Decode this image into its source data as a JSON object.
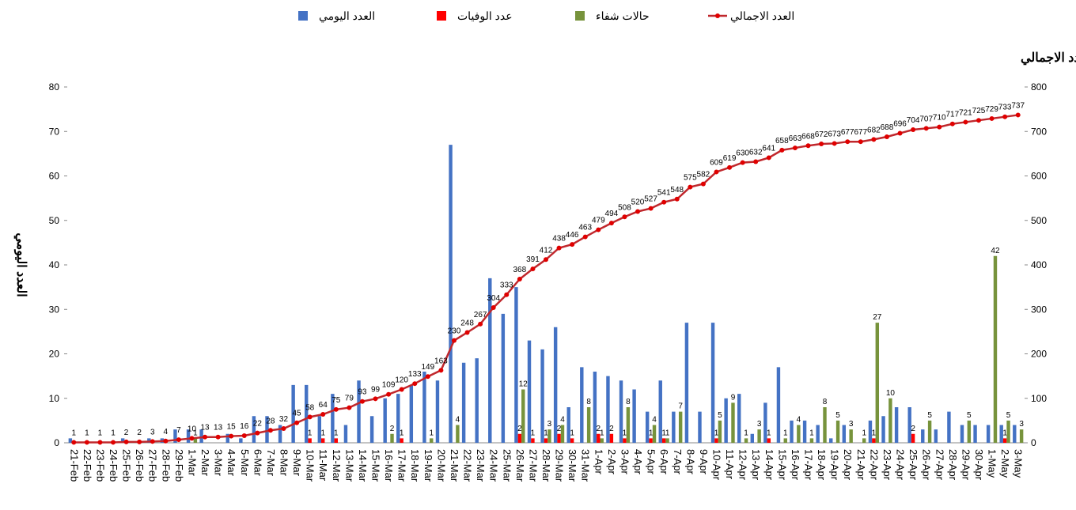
{
  "chart_data": {
    "type": "bar",
    "y_label": "العدد اليومي",
    "y2_label": "العدد الاجمالي",
    "categories": [
      "21-Feb",
      "22-Feb",
      "23-Feb",
      "24-Feb",
      "25-Feb",
      "26-Feb",
      "27-Feb",
      "28-Feb",
      "29-Feb",
      "1-Mar",
      "2-Mar",
      "3-Mar",
      "4-Mar",
      "5-Mar",
      "6-Mar",
      "7-Mar",
      "8-Mar",
      "9-Mar",
      "10-Mar",
      "11-Mar",
      "12-Mar",
      "13-Mar",
      "14-Mar",
      "15-Mar",
      "16-Mar",
      "17-Mar",
      "18-Mar",
      "19-Mar",
      "20-Mar",
      "21-Mar",
      "22-Mar",
      "23-Mar",
      "24-Mar",
      "25-Mar",
      "26-Mar",
      "27-Mar",
      "28-Mar",
      "29-Mar",
      "30-Mar",
      "31-Mar",
      "1-Apr",
      "2-Apr",
      "3-Apr",
      "4-Apr",
      "5-Apr",
      "6-Apr",
      "7-Apr",
      "8-Apr",
      "9-Apr",
      "10-Apr",
      "11-Apr",
      "12-Apr",
      "13-Apr",
      "14-Apr",
      "15-Apr",
      "16-Apr",
      "17-Apr",
      "18-Apr",
      "19-Apr",
      "20-Apr",
      "21-Apr",
      "22-Apr",
      "23-Apr",
      "24-Apr",
      "25-Apr",
      "26-Apr",
      "27-Apr",
      "28-Apr",
      "29-Apr",
      "30-Apr",
      "1-May",
      "2-May",
      "3-May"
    ],
    "series": [
      {
        "name": "العدد اليومي",
        "color": "#4472c4",
        "type": "bar",
        "values": [
          1,
          0,
          0,
          0,
          1,
          0,
          1,
          1,
          3,
          3,
          3,
          0,
          2,
          1,
          6,
          6,
          4,
          13,
          13,
          6,
          11,
          4,
          14,
          6,
          10,
          11,
          13,
          16,
          14,
          67,
          18,
          19,
          37,
          29,
          35,
          23,
          21,
          26,
          8,
          17,
          16,
          15,
          14,
          12,
          7,
          14,
          7,
          27,
          7,
          27,
          10,
          11,
          2,
          9,
          17,
          5,
          5,
          4,
          1,
          4,
          0,
          5,
          6,
          8,
          8,
          3,
          3,
          7,
          4,
          4,
          4,
          4,
          4
        ]
      },
      {
        "name": "عدد الوفيات",
        "color": "#ff0000",
        "type": "bar",
        "labels": true,
        "values": [
          null,
          null,
          null,
          null,
          null,
          null,
          null,
          null,
          null,
          null,
          null,
          null,
          null,
          null,
          null,
          null,
          null,
          null,
          1,
          1,
          1,
          null,
          null,
          null,
          null,
          1,
          null,
          null,
          null,
          null,
          null,
          null,
          null,
          null,
          2,
          1,
          1,
          2,
          1,
          null,
          2,
          2,
          1,
          null,
          1,
          1,
          null,
          null,
          null,
          1,
          null,
          null,
          null,
          1,
          null,
          null,
          null,
          null,
          null,
          null,
          null,
          1,
          null,
          null,
          2,
          null,
          null,
          null,
          null,
          null,
          null,
          1,
          null
        ]
      },
      {
        "name": "حالات شفاء",
        "color": "#77933c",
        "type": "bar",
        "labels": true,
        "values": [
          null,
          null,
          null,
          null,
          null,
          null,
          null,
          null,
          null,
          1,
          null,
          null,
          null,
          null,
          null,
          null,
          null,
          null,
          null,
          null,
          null,
          null,
          null,
          null,
          2,
          null,
          null,
          1,
          null,
          4,
          null,
          null,
          null,
          null,
          12,
          null,
          3,
          4,
          null,
          8,
          1,
          null,
          8,
          null,
          4,
          1,
          7,
          null,
          null,
          5,
          9,
          1,
          3,
          null,
          1,
          4,
          1,
          8,
          5,
          3,
          1,
          27,
          10,
          null,
          null,
          5,
          null,
          null,
          5,
          null,
          42,
          5,
          3
        ]
      },
      {
        "name": "العدد الاجمالي",
        "color": "#c0282d",
        "type": "line",
        "axis": "y2",
        "labels": true,
        "values": [
          1,
          1,
          1,
          1,
          2,
          2,
          3,
          4,
          7,
          10,
          13,
          13,
          15,
          16,
          22,
          28,
          32,
          45,
          58,
          64,
          75,
          79,
          93,
          99,
          109,
          120,
          133,
          149,
          163,
          230,
          248,
          267,
          304,
          333,
          368,
          391,
          412,
          438,
          446,
          463,
          479,
          494,
          508,
          520,
          527,
          541,
          548,
          575,
          582,
          609,
          619,
          630,
          632,
          641,
          658,
          663,
          668,
          672,
          673,
          677,
          677,
          682,
          688,
          696,
          704,
          707,
          710,
          717,
          721,
          725,
          729,
          733,
          737
        ]
      }
    ],
    "ylim": [
      0,
      80
    ],
    "yticks": [
      0,
      10,
      20,
      30,
      40,
      50,
      60,
      70,
      80
    ],
    "y2lim": [
      0,
      800
    ],
    "y2ticks": [
      0,
      100,
      200,
      300,
      400,
      500,
      600,
      700,
      800
    ]
  }
}
